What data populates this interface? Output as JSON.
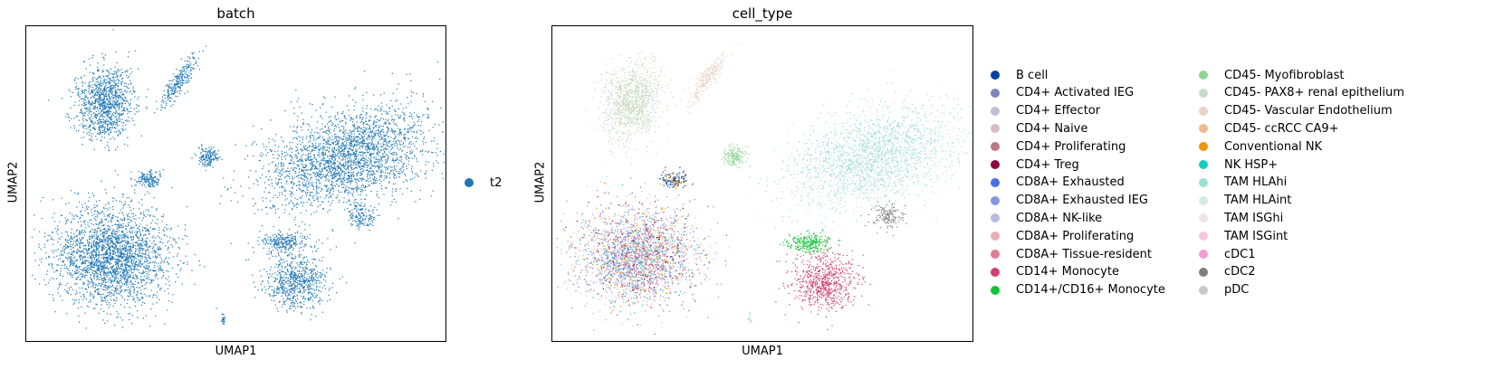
{
  "chart_data": [
    {
      "type": "scatter",
      "title": "batch",
      "xlabel": "UMAP1",
      "ylabel": "UMAP2",
      "legend_placement": "right",
      "grid": false,
      "series": [
        {
          "name": "t2",
          "color": "#1f77b4"
        }
      ]
    },
    {
      "type": "scatter",
      "title": "cell_type",
      "xlabel": "UMAP1",
      "ylabel": "UMAP2",
      "legend_placement": "right",
      "grid": false,
      "series": [
        {
          "name": "B cell",
          "color": "#023fa5"
        },
        {
          "name": "CD4+ Activated IEG",
          "color": "#7d87b9"
        },
        {
          "name": "CD4+ Effector",
          "color": "#bec1d4"
        },
        {
          "name": "CD4+ Naive",
          "color": "#d6bcc0"
        },
        {
          "name": "CD4+ Proliferating",
          "color": "#bb7784"
        },
        {
          "name": "CD4+ Treg",
          "color": "#8e063b"
        },
        {
          "name": "CD8A+ Exhausted",
          "color": "#4a6fe3"
        },
        {
          "name": "CD8A+ Exhausted IEG",
          "color": "#8595e1"
        },
        {
          "name": "CD8A+ NK-like",
          "color": "#b5bbe3"
        },
        {
          "name": "CD8A+ Proliferating",
          "color": "#e6afb9"
        },
        {
          "name": "CD8A+ Tissue-resident",
          "color": "#e07b91"
        },
        {
          "name": "CD14+ Monocyte",
          "color": "#d33f6a"
        },
        {
          "name": "CD14+/CD16+ Monocyte",
          "color": "#11c638"
        },
        {
          "name": "CD45- Myofibroblast",
          "color": "#8dd593"
        },
        {
          "name": "CD45- PAX8+ renal epithelium",
          "color": "#c6dec7"
        },
        {
          "name": "CD45- Vascular Endothelium",
          "color": "#ead3c6"
        },
        {
          "name": "CD45- ccRCC CA9+",
          "color": "#f0b98d"
        },
        {
          "name": "Conventional NK",
          "color": "#ef9708"
        },
        {
          "name": "NK HSP+",
          "color": "#0fcfc0"
        },
        {
          "name": "TAM HLAhi",
          "color": "#9cded6"
        },
        {
          "name": "TAM HLAint",
          "color": "#d5eae7"
        },
        {
          "name": "TAM ISGhi",
          "color": "#f3e1eb"
        },
        {
          "name": "TAM ISGint",
          "color": "#f6c4e1"
        },
        {
          "name": "cDC1",
          "color": "#f79cd4"
        },
        {
          "name": "cDC2",
          "color": "#7f7f7f"
        },
        {
          "name": "pDC",
          "color": "#c7c7c7"
        }
      ]
    }
  ]
}
